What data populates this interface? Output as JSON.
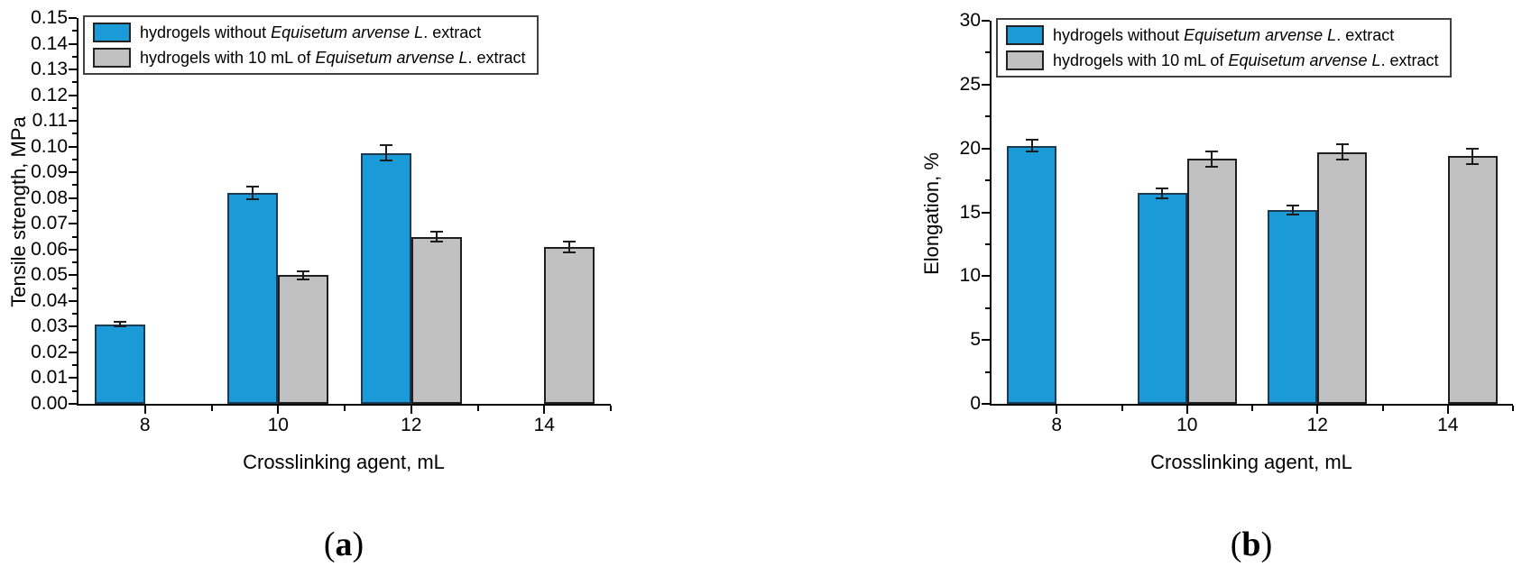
{
  "figure": {
    "background": "#ffffff"
  },
  "captions": {
    "a": {
      "open": "(",
      "letter": "a",
      "close": ")"
    },
    "b": {
      "open": "(",
      "letter": "b",
      "close": ")"
    }
  },
  "legend": {
    "items": [
      {
        "series": "without-extract",
        "color": "#1a9ad6",
        "prefix": "hydrogels without ",
        "italic": "Equisetum arvense L",
        "suffix": ". extract"
      },
      {
        "series": "with-extract",
        "color": "#c1c1c1",
        "prefix": "hydrogels with 10 mL of ",
        "italic": "Equisetum arvense L",
        "suffix": ". extract"
      }
    ]
  },
  "chart_data": [
    {
      "id": "a",
      "type": "bar",
      "xlabel": "Crosslinking agent, mL",
      "ylabel": "Tensile strength, MPa",
      "categories": [
        8,
        10,
        12,
        14
      ],
      "ylim": [
        0,
        0.15
      ],
      "ytick_step": 0.01,
      "minor_tick_step": 0.005,
      "ytick_decimals": 2,
      "grid": false,
      "legend_position": "top-left",
      "caption": "(a)",
      "series": [
        {
          "name": "hydrogels without Equisetum arvense L. extract",
          "color": "#1a9ad6",
          "border": "#1c3b52",
          "values": [
            0.031,
            0.082,
            0.0975,
            null
          ],
          "errors": [
            0.001,
            0.0025,
            0.003,
            null
          ]
        },
        {
          "name": "hydrogels with 10 mL of Equisetum arvense L. extract",
          "color": "#c1c1c1",
          "border": "#1f1f1f",
          "values": [
            null,
            0.05,
            0.065,
            0.061
          ],
          "errors": [
            null,
            0.0015,
            0.002,
            0.002
          ]
        }
      ]
    },
    {
      "id": "b",
      "type": "bar",
      "xlabel": "Crosslinking agent, mL",
      "ylabel": "Elongation, %",
      "categories": [
        8,
        10,
        12,
        14
      ],
      "ylim": [
        0,
        30
      ],
      "ytick_step": 5,
      "minor_tick_step": 2.5,
      "ytick_decimals": 0,
      "grid": false,
      "legend_position": "top-left",
      "caption": "(b)",
      "series": [
        {
          "name": "hydrogels without Equisetum arvense L. extract",
          "color": "#1a9ad6",
          "border": "#1c3b52",
          "values": [
            20.2,
            16.5,
            15.2,
            null
          ],
          "errors": [
            0.45,
            0.4,
            0.35,
            null
          ]
        },
        {
          "name": "hydrogels with 10 mL of Equisetum arvense L. extract",
          "color": "#c1c1c1",
          "border": "#1f1f1f",
          "values": [
            null,
            19.2,
            19.7,
            19.4
          ],
          "errors": [
            null,
            0.6,
            0.6,
            0.6
          ]
        }
      ]
    }
  ]
}
